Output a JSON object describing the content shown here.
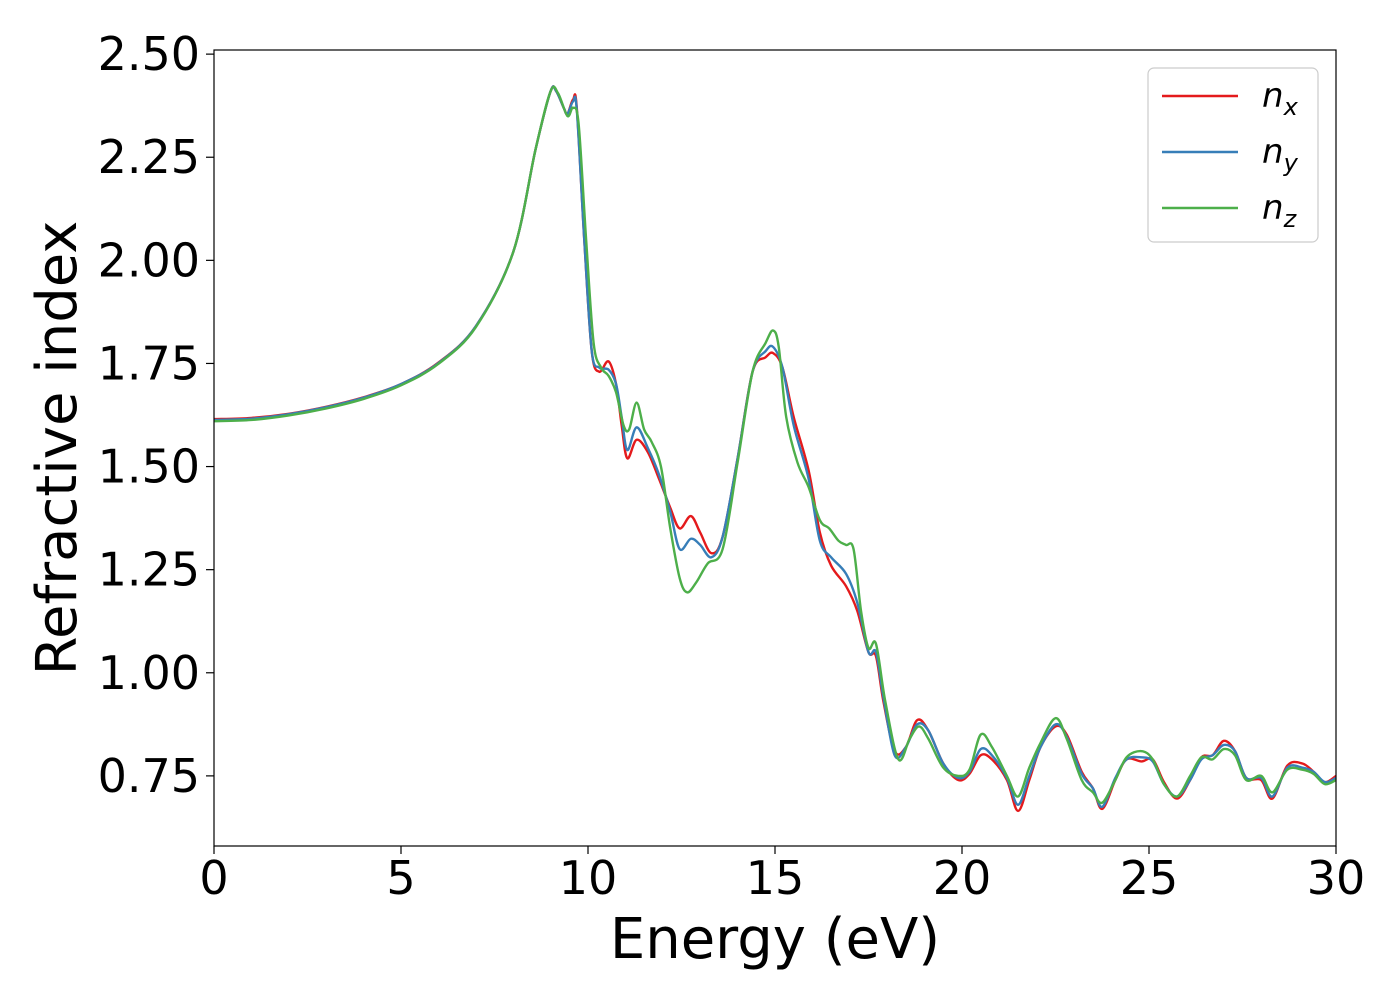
{
  "chart_data": {
    "type": "line",
    "xlabel": "Energy (eV)",
    "ylabel": "Refractive index",
    "xlim": [
      0,
      30
    ],
    "ylim": [
      0.58,
      2.51
    ],
    "xticks": [
      0,
      5,
      10,
      15,
      20,
      25,
      30
    ],
    "xtick_labels": [
      "0",
      "5",
      "10",
      "15",
      "20",
      "25",
      "30"
    ],
    "yticks": [
      0.75,
      1.0,
      1.25,
      1.5,
      1.75,
      2.0,
      2.25,
      2.5
    ],
    "ytick_labels": [
      "0.75",
      "1.00",
      "1.25",
      "1.50",
      "1.75",
      "2.00",
      "2.25",
      "2.50"
    ],
    "grid": false,
    "legend_position": "top-right",
    "series": [
      {
        "name": "n_x",
        "label_base": "n",
        "label_sub": "x",
        "color": "#e41a1c",
        "points": [
          [
            0,
            1.615
          ],
          [
            1,
            1.618
          ],
          [
            2,
            1.628
          ],
          [
            3,
            1.645
          ],
          [
            4,
            1.668
          ],
          [
            5,
            1.7
          ],
          [
            6,
            1.752
          ],
          [
            7,
            1.84
          ],
          [
            8,
            2.02
          ],
          [
            8.6,
            2.27
          ],
          [
            9.0,
            2.41
          ],
          [
            9.15,
            2.41
          ],
          [
            9.35,
            2.37
          ],
          [
            9.45,
            2.355
          ],
          [
            9.6,
            2.39
          ],
          [
            9.7,
            2.37
          ],
          [
            9.9,
            2.05
          ],
          [
            10.1,
            1.78
          ],
          [
            10.3,
            1.73
          ],
          [
            10.55,
            1.755
          ],
          [
            10.75,
            1.7
          ],
          [
            10.9,
            1.6
          ],
          [
            11.05,
            1.52
          ],
          [
            11.3,
            1.565
          ],
          [
            11.6,
            1.535
          ],
          [
            11.9,
            1.47
          ],
          [
            12.2,
            1.4
          ],
          [
            12.45,
            1.35
          ],
          [
            12.75,
            1.38
          ],
          [
            13.0,
            1.34
          ],
          [
            13.3,
            1.29
          ],
          [
            13.6,
            1.33
          ],
          [
            14.0,
            1.52
          ],
          [
            14.4,
            1.73
          ],
          [
            14.75,
            1.765
          ],
          [
            14.95,
            1.775
          ],
          [
            15.2,
            1.74
          ],
          [
            15.5,
            1.62
          ],
          [
            15.9,
            1.49
          ],
          [
            16.2,
            1.34
          ],
          [
            16.5,
            1.26
          ],
          [
            16.9,
            1.21
          ],
          [
            17.2,
            1.15
          ],
          [
            17.5,
            1.05
          ],
          [
            17.7,
            1.04
          ],
          [
            17.9,
            0.93
          ],
          [
            18.2,
            0.81
          ],
          [
            18.5,
            0.82
          ],
          [
            18.8,
            0.885
          ],
          [
            19.1,
            0.86
          ],
          [
            19.5,
            0.78
          ],
          [
            19.9,
            0.74
          ],
          [
            20.2,
            0.755
          ],
          [
            20.5,
            0.8
          ],
          [
            20.8,
            0.79
          ],
          [
            21.2,
            0.74
          ],
          [
            21.5,
            0.665
          ],
          [
            21.8,
            0.74
          ],
          [
            22.1,
            0.82
          ],
          [
            22.5,
            0.87
          ],
          [
            22.8,
            0.85
          ],
          [
            23.2,
            0.76
          ],
          [
            23.5,
            0.72
          ],
          [
            23.75,
            0.67
          ],
          [
            24.1,
            0.74
          ],
          [
            24.4,
            0.79
          ],
          [
            24.8,
            0.785
          ],
          [
            25.1,
            0.79
          ],
          [
            25.4,
            0.735
          ],
          [
            25.75,
            0.695
          ],
          [
            26.1,
            0.74
          ],
          [
            26.4,
            0.795
          ],
          [
            26.7,
            0.8
          ],
          [
            27.0,
            0.835
          ],
          [
            27.3,
            0.81
          ],
          [
            27.6,
            0.745
          ],
          [
            28.0,
            0.74
          ],
          [
            28.3,
            0.695
          ],
          [
            28.7,
            0.775
          ],
          [
            29.1,
            0.78
          ],
          [
            29.4,
            0.76
          ],
          [
            29.7,
            0.735
          ],
          [
            30,
            0.75
          ]
        ]
      },
      {
        "name": "n_y",
        "label_base": "n",
        "label_sub": "y",
        "color": "#377eb8",
        "points": [
          [
            0,
            1.613
          ],
          [
            1,
            1.616
          ],
          [
            2,
            1.627
          ],
          [
            3,
            1.644
          ],
          [
            4,
            1.667
          ],
          [
            5,
            1.7
          ],
          [
            6,
            1.751
          ],
          [
            7,
            1.84
          ],
          [
            8,
            2.02
          ],
          [
            8.6,
            2.27
          ],
          [
            9.0,
            2.41
          ],
          [
            9.15,
            2.41
          ],
          [
            9.35,
            2.37
          ],
          [
            9.45,
            2.355
          ],
          [
            9.6,
            2.385
          ],
          [
            9.7,
            2.365
          ],
          [
            9.9,
            2.05
          ],
          [
            10.1,
            1.78
          ],
          [
            10.3,
            1.74
          ],
          [
            10.55,
            1.735
          ],
          [
            10.75,
            1.7
          ],
          [
            10.9,
            1.62
          ],
          [
            11.05,
            1.54
          ],
          [
            11.3,
            1.595
          ],
          [
            11.6,
            1.545
          ],
          [
            11.9,
            1.48
          ],
          [
            12.2,
            1.39
          ],
          [
            12.45,
            1.3
          ],
          [
            12.75,
            1.325
          ],
          [
            13.0,
            1.31
          ],
          [
            13.3,
            1.28
          ],
          [
            13.6,
            1.33
          ],
          [
            14.0,
            1.52
          ],
          [
            14.4,
            1.73
          ],
          [
            14.75,
            1.78
          ],
          [
            14.95,
            1.79
          ],
          [
            15.2,
            1.74
          ],
          [
            15.5,
            1.6
          ],
          [
            15.9,
            1.47
          ],
          [
            16.2,
            1.32
          ],
          [
            16.5,
            1.28
          ],
          [
            16.9,
            1.24
          ],
          [
            17.2,
            1.17
          ],
          [
            17.5,
            1.05
          ],
          [
            17.7,
            1.05
          ],
          [
            17.9,
            0.94
          ],
          [
            18.2,
            0.8
          ],
          [
            18.5,
            0.82
          ],
          [
            18.8,
            0.875
          ],
          [
            19.1,
            0.86
          ],
          [
            19.5,
            0.78
          ],
          [
            19.9,
            0.745
          ],
          [
            20.2,
            0.76
          ],
          [
            20.5,
            0.815
          ],
          [
            20.8,
            0.8
          ],
          [
            21.2,
            0.745
          ],
          [
            21.5,
            0.68
          ],
          [
            21.8,
            0.75
          ],
          [
            22.1,
            0.82
          ],
          [
            22.5,
            0.875
          ],
          [
            22.8,
            0.845
          ],
          [
            23.2,
            0.755
          ],
          [
            23.5,
            0.72
          ],
          [
            23.75,
            0.675
          ],
          [
            24.1,
            0.745
          ],
          [
            24.4,
            0.79
          ],
          [
            24.8,
            0.795
          ],
          [
            25.1,
            0.785
          ],
          [
            25.4,
            0.73
          ],
          [
            25.75,
            0.7
          ],
          [
            26.1,
            0.74
          ],
          [
            26.4,
            0.79
          ],
          [
            26.7,
            0.8
          ],
          [
            27.0,
            0.825
          ],
          [
            27.3,
            0.81
          ],
          [
            27.6,
            0.745
          ],
          [
            28.0,
            0.745
          ],
          [
            28.3,
            0.7
          ],
          [
            28.7,
            0.77
          ],
          [
            29.1,
            0.77
          ],
          [
            29.4,
            0.76
          ],
          [
            29.7,
            0.735
          ],
          [
            30,
            0.745
          ]
        ]
      },
      {
        "name": "n_z",
        "label_base": "n",
        "label_sub": "z",
        "color": "#4daf4a",
        "points": [
          [
            0,
            1.61
          ],
          [
            1,
            1.613
          ],
          [
            2,
            1.624
          ],
          [
            3,
            1.641
          ],
          [
            4,
            1.664
          ],
          [
            5,
            1.697
          ],
          [
            6,
            1.749
          ],
          [
            7,
            1.838
          ],
          [
            8,
            2.02
          ],
          [
            8.6,
            2.27
          ],
          [
            9.0,
            2.41
          ],
          [
            9.2,
            2.405
          ],
          [
            9.45,
            2.35
          ],
          [
            9.6,
            2.37
          ],
          [
            9.75,
            2.33
          ],
          [
            9.95,
            2.05
          ],
          [
            10.15,
            1.8
          ],
          [
            10.35,
            1.74
          ],
          [
            10.55,
            1.72
          ],
          [
            10.75,
            1.68
          ],
          [
            10.95,
            1.6
          ],
          [
            11.1,
            1.59
          ],
          [
            11.3,
            1.655
          ],
          [
            11.5,
            1.59
          ],
          [
            11.7,
            1.56
          ],
          [
            11.95,
            1.5
          ],
          [
            12.2,
            1.35
          ],
          [
            12.45,
            1.23
          ],
          [
            12.65,
            1.195
          ],
          [
            12.9,
            1.22
          ],
          [
            13.2,
            1.265
          ],
          [
            13.6,
            1.3
          ],
          [
            14.0,
            1.51
          ],
          [
            14.4,
            1.73
          ],
          [
            14.75,
            1.8
          ],
          [
            14.95,
            1.83
          ],
          [
            15.1,
            1.79
          ],
          [
            15.3,
            1.62
          ],
          [
            15.6,
            1.51
          ],
          [
            15.9,
            1.45
          ],
          [
            16.2,
            1.37
          ],
          [
            16.45,
            1.35
          ],
          [
            16.7,
            1.32
          ],
          [
            16.9,
            1.31
          ],
          [
            17.1,
            1.3
          ],
          [
            17.3,
            1.15
          ],
          [
            17.5,
            1.06
          ],
          [
            17.7,
            1.07
          ],
          [
            17.95,
            0.93
          ],
          [
            18.3,
            0.79
          ],
          [
            18.6,
            0.84
          ],
          [
            18.85,
            0.87
          ],
          [
            19.1,
            0.84
          ],
          [
            19.5,
            0.77
          ],
          [
            19.9,
            0.75
          ],
          [
            20.2,
            0.765
          ],
          [
            20.5,
            0.85
          ],
          [
            20.8,
            0.82
          ],
          [
            21.2,
            0.75
          ],
          [
            21.5,
            0.7
          ],
          [
            21.8,
            0.77
          ],
          [
            22.1,
            0.83
          ],
          [
            22.5,
            0.89
          ],
          [
            22.8,
            0.84
          ],
          [
            23.2,
            0.74
          ],
          [
            23.5,
            0.71
          ],
          [
            23.75,
            0.685
          ],
          [
            24.1,
            0.74
          ],
          [
            24.4,
            0.795
          ],
          [
            24.8,
            0.81
          ],
          [
            25.1,
            0.79
          ],
          [
            25.4,
            0.73
          ],
          [
            25.75,
            0.7
          ],
          [
            26.1,
            0.75
          ],
          [
            26.4,
            0.795
          ],
          [
            26.7,
            0.79
          ],
          [
            27.0,
            0.815
          ],
          [
            27.3,
            0.8
          ],
          [
            27.6,
            0.74
          ],
          [
            28.0,
            0.75
          ],
          [
            28.3,
            0.71
          ],
          [
            28.7,
            0.765
          ],
          [
            29.1,
            0.765
          ],
          [
            29.4,
            0.755
          ],
          [
            29.7,
            0.73
          ],
          [
            30,
            0.74
          ]
        ]
      }
    ]
  }
}
